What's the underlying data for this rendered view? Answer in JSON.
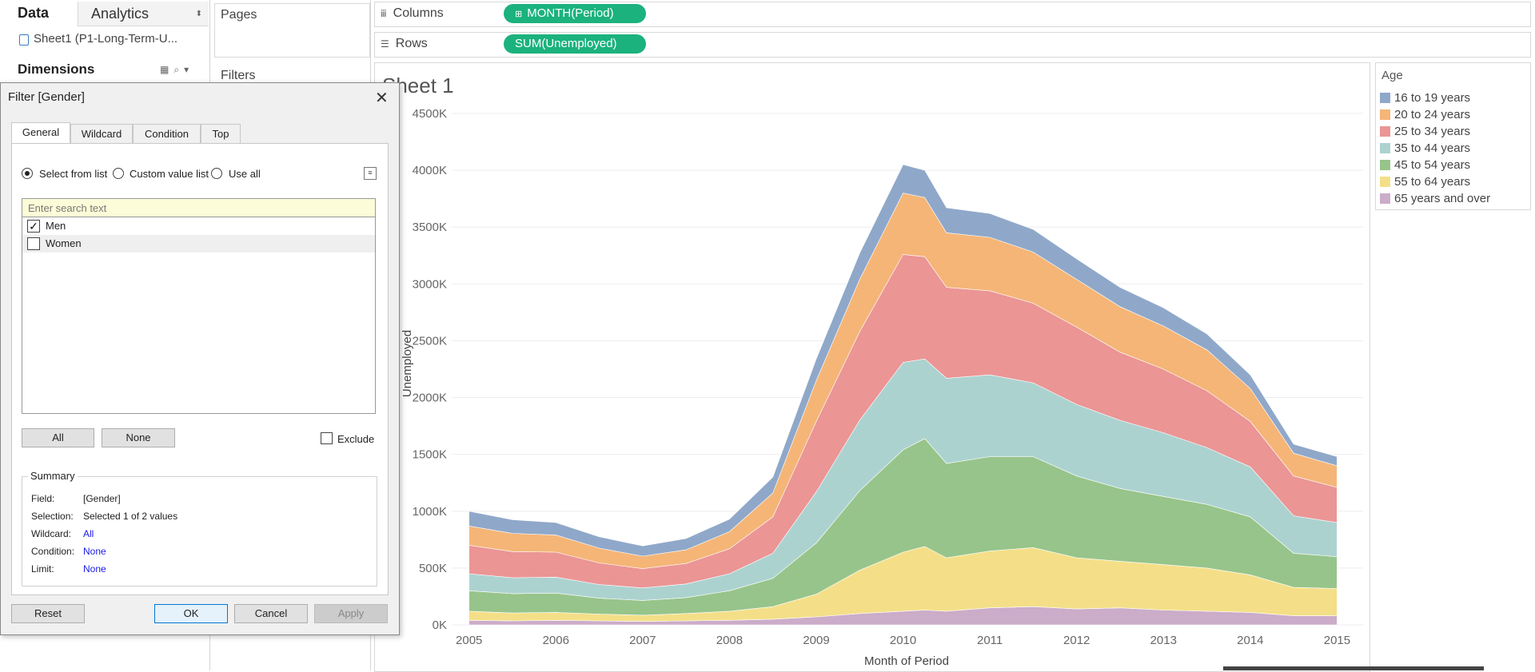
{
  "data_pane": {
    "tab_data": "Data",
    "tab_analytics": "Analytics",
    "datasource": "Sheet1 (P1-Long-Term-U...",
    "dimensions_label": "Dimensions"
  },
  "shelves": {
    "pages_label": "Pages",
    "filters_label": "Filters",
    "columns_label": "Columns",
    "rows_label": "Rows",
    "columns_pill": "MONTH(Period)",
    "rows_pill": "SUM(Unemployed)"
  },
  "sheet_title": "Sheet 1",
  "legend": {
    "title": "Age",
    "items": [
      {
        "label": "16 to 19 years",
        "color": "#8fa8c9"
      },
      {
        "label": "20 to 24 years",
        "color": "#f5b577"
      },
      {
        "label": "25 to 34 years",
        "color": "#eb9595"
      },
      {
        "label": "35 to 44 years",
        "color": "#acd2d0"
      },
      {
        "label": "45 to 54 years",
        "color": "#97c48a"
      },
      {
        "label": "55 to 64 years",
        "color": "#f4df88"
      },
      {
        "label": "65 years and over",
        "color": "#cbacc9"
      }
    ]
  },
  "chart_data": {
    "type": "area",
    "stacked": true,
    "xlabel": "Month of Period",
    "ylabel": "Unemployed",
    "x_ticks": [
      "2005",
      "2006",
      "2007",
      "2008",
      "2009",
      "2010",
      "2011",
      "2012",
      "2013",
      "2014",
      "2015"
    ],
    "y_ticks": [
      "0K",
      "500K",
      "1000K",
      "1500K",
      "2000K",
      "2500K",
      "3000K",
      "3500K",
      "4000K",
      "4500K"
    ],
    "ylim": [
      0,
      4500
    ],
    "x": [
      2005.0,
      2005.5,
      2006.0,
      2006.5,
      2007.0,
      2007.5,
      2008.0,
      2008.5,
      2009.0,
      2009.5,
      2010.0,
      2010.25,
      2010.5,
      2011.0,
      2011.5,
      2012.0,
      2012.5,
      2013.0,
      2013.5,
      2014.0,
      2014.5,
      2015.0
    ],
    "series": [
      {
        "name": "65 years and over",
        "values": [
          40,
          35,
          40,
          35,
          30,
          35,
          40,
          50,
          70,
          100,
          120,
          130,
          120,
          150,
          160,
          140,
          150,
          130,
          120,
          110,
          80,
          80
        ]
      },
      {
        "name": "55 to 64 years",
        "values": [
          80,
          70,
          70,
          60,
          55,
          65,
          80,
          110,
          200,
          380,
          520,
          560,
          470,
          500,
          520,
          450,
          410,
          400,
          380,
          330,
          250,
          240
        ]
      },
      {
        "name": "45 to 54 years",
        "values": [
          180,
          170,
          170,
          140,
          130,
          140,
          180,
          250,
          450,
          700,
          900,
          950,
          830,
          830,
          800,
          720,
          640,
          600,
          560,
          510,
          300,
          280
        ]
      },
      {
        "name": "35 to 44 years",
        "values": [
          150,
          140,
          140,
          120,
          110,
          120,
          150,
          220,
          450,
          620,
          770,
          700,
          750,
          720,
          650,
          630,
          600,
          560,
          500,
          440,
          330,
          300
        ]
      },
      {
        "name": "25 to 34 years",
        "values": [
          250,
          230,
          220,
          190,
          170,
          180,
          220,
          320,
          620,
          780,
          950,
          900,
          800,
          740,
          700,
          680,
          600,
          560,
          500,
          400,
          350,
          310
        ]
      },
      {
        "name": "20 to 24 years",
        "values": [
          170,
          160,
          150,
          130,
          110,
          120,
          150,
          210,
          360,
          460,
          540,
          520,
          480,
          470,
          450,
          420,
          400,
          380,
          360,
          290,
          200,
          190
        ]
      },
      {
        "name": "16 to 19 years",
        "values": [
          130,
          120,
          110,
          100,
          90,
          100,
          110,
          140,
          190,
          230,
          250,
          240,
          220,
          210,
          200,
          180,
          170,
          160,
          140,
          120,
          80,
          80
        ]
      }
    ]
  },
  "dialog": {
    "title": "Filter [Gender]",
    "tabs": [
      "General",
      "Wildcard",
      "Condition",
      "Top"
    ],
    "radio_select_from_list": "Select from list",
    "radio_custom_value_list": "Custom value list",
    "radio_use_all": "Use all",
    "search_placeholder": "Enter search text",
    "list_items": [
      {
        "label": "Men",
        "checked": true
      },
      {
        "label": "Women",
        "checked": false
      }
    ],
    "btn_all": "All",
    "btn_none": "None",
    "exclude_label": "Exclude",
    "summary_legend": "Summary",
    "summary": {
      "field_key": "Field:",
      "field_val": "[Gender]",
      "selection_key": "Selection:",
      "selection_val": "Selected 1 of 2 values",
      "wildcard_key": "Wildcard:",
      "wildcard_val": "All",
      "condition_key": "Condition:",
      "condition_val": "None",
      "limit_key": "Limit:",
      "limit_val": "None"
    },
    "btn_reset": "Reset",
    "btn_ok": "OK",
    "btn_cancel": "Cancel",
    "btn_apply": "Apply"
  }
}
